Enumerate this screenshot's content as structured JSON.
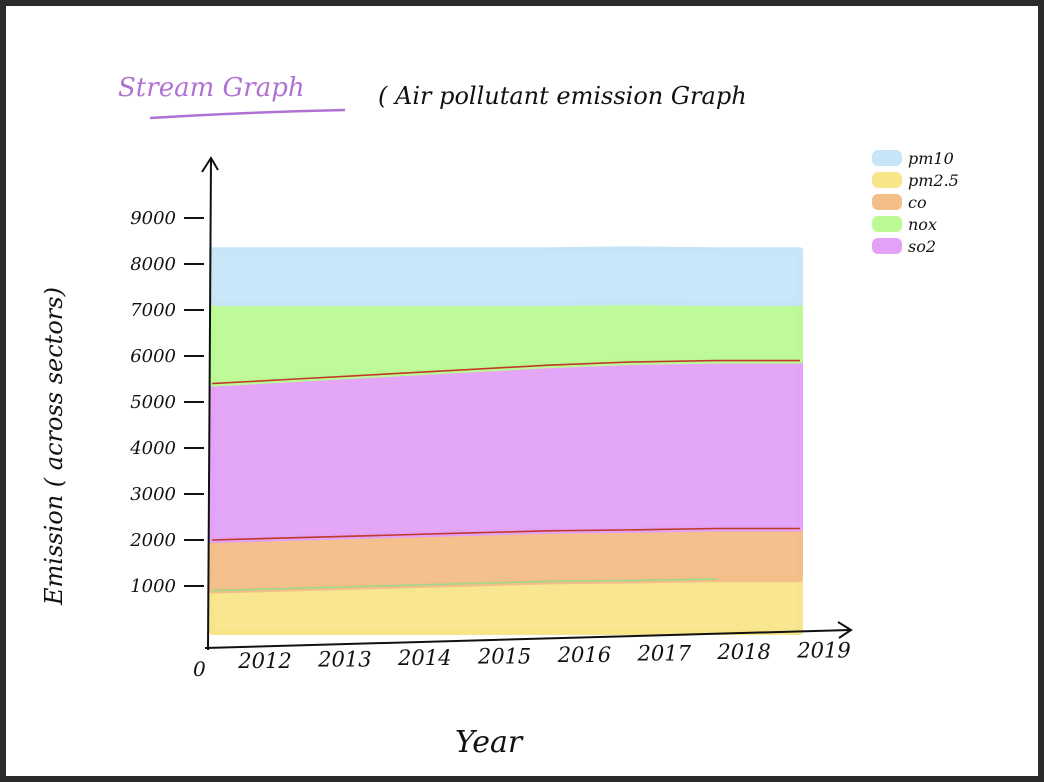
{
  "chart_data": {
    "type": "area",
    "title": "Stream Graph",
    "subtitle": "( Air pollutant emission Graph",
    "xlabel": "Year",
    "ylabel": "Emission ( across sectors)",
    "x_zero_label": "0",
    "categories": [
      "2012",
      "2013",
      "2014",
      "2015",
      "2016",
      "2017",
      "2018",
      "2019"
    ],
    "y_ticks": [
      {
        "value": 1000,
        "label": "1000"
      },
      {
        "value": 2000,
        "label": "2000"
      },
      {
        "value": 3000,
        "label": "3000"
      },
      {
        "value": 4000,
        "label": "4000"
      },
      {
        "value": 5000,
        "label": "5000"
      },
      {
        "value": 6000,
        "label": "6000"
      },
      {
        "value": 7000,
        "label": "7000"
      },
      {
        "value": 8000,
        "label": "8000"
      },
      {
        "value": 9000,
        "label": "9000"
      }
    ],
    "ylim": [
      0,
      9800
    ],
    "stacked": true,
    "series": [
      {
        "name": "pm2.5",
        "color": "#F8E58A",
        "values": [
          900,
          950,
          1000,
          1050,
          1100,
          1120,
          1150,
          1150
        ]
      },
      {
        "name": "co",
        "color": "#F3BE88",
        "values": [
          1100,
          1100,
          1100,
          1100,
          1100,
          1100,
          1100,
          1100
        ]
      },
      {
        "name": "so2",
        "color": "#E3A1F7",
        "values": [
          3400,
          3450,
          3500,
          3550,
          3600,
          3650,
          3650,
          3650
        ]
      },
      {
        "name": "nox",
        "color": "#BBFA93",
        "values": [
          1750,
          1650,
          1550,
          1450,
          1350,
          1300,
          1250,
          1250
        ]
      },
      {
        "name": "pm10",
        "color": "#C6E6F8",
        "values": [
          1150,
          1150,
          1150,
          1150,
          1150,
          1150,
          1150,
          1150
        ]
      }
    ],
    "legend": {
      "position": "top-right",
      "entries": [
        {
          "label": "pm10",
          "color": "#C6E6F8"
        },
        {
          "label": "pm2.5",
          "color": "#F8E58A"
        },
        {
          "label": "co",
          "color": "#F3BE88"
        },
        {
          "label": "nox",
          "color": "#BBFA93"
        },
        {
          "label": "so2",
          "color": "#E3A1F7"
        }
      ]
    },
    "grid": false,
    "boundary_color": "#C0392B"
  }
}
